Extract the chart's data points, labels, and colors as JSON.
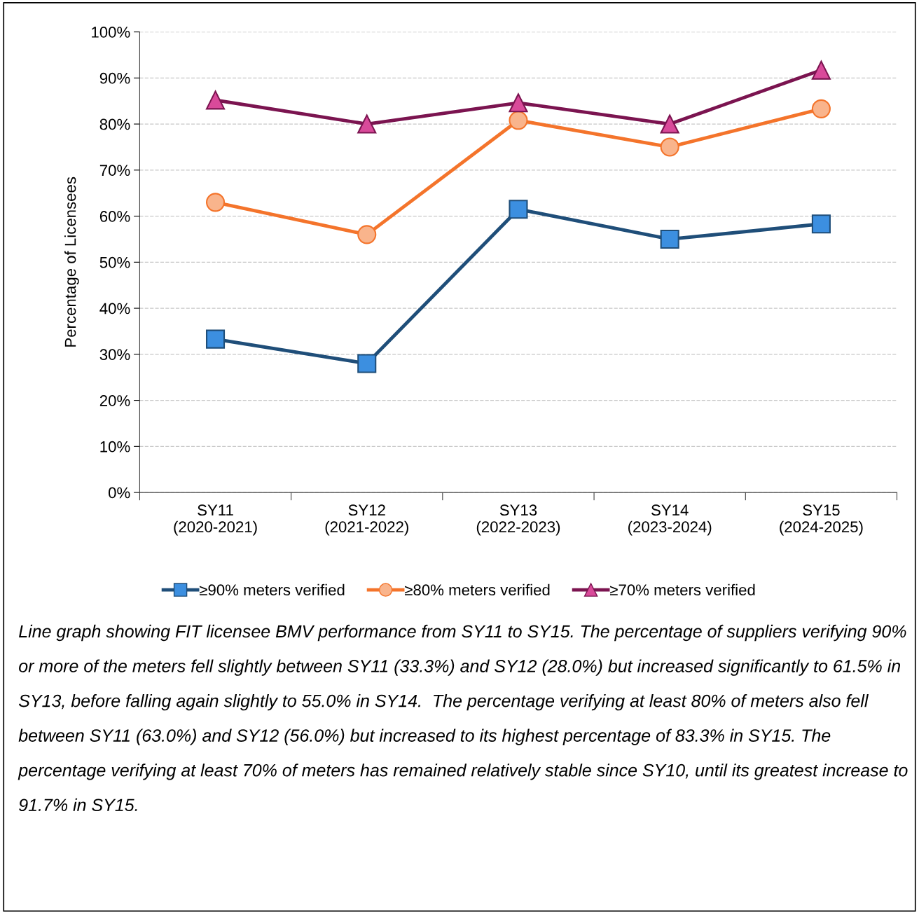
{
  "chart_data": {
    "type": "line",
    "ylabel": "Percentage of Licensees",
    "categories": [
      "SY11\n(2020-2021)",
      "SY12\n(2021-2022)",
      "SY13\n(2022-2023)",
      "SY14\n(2023-2024)",
      "SY15\n(2024-2025)"
    ],
    "series": [
      {
        "name": "≥90% meters verified",
        "color": "#1f4e79",
        "marker": "square",
        "values": [
          33.3,
          28.0,
          61.5,
          55.0,
          58.3
        ]
      },
      {
        "name": "≥80% meters verified",
        "color": "#f4742b",
        "marker": "circle",
        "values": [
          63.0,
          56.0,
          80.8,
          75.0,
          83.3
        ]
      },
      {
        "name": "≥70% meters verified",
        "color": "#7b1450",
        "marker": "triangle",
        "values": [
          85.2,
          80.0,
          84.6,
          80.0,
          91.7
        ]
      }
    ],
    "ylim": [
      0,
      100
    ],
    "yticks": [
      {
        "value": 0,
        "label": "0%"
      },
      {
        "value": 10,
        "label": "10%"
      },
      {
        "value": 20,
        "label": "20%"
      },
      {
        "value": 30,
        "label": "30%"
      },
      {
        "value": 40,
        "label": "40%"
      },
      {
        "value": 50,
        "label": "50%"
      },
      {
        "value": 60,
        "label": "60%"
      },
      {
        "value": 70,
        "label": "70%"
      },
      {
        "value": 80,
        "label": "80%"
      },
      {
        "value": 90,
        "label": "90%"
      },
      {
        "value": 100,
        "label": "100%"
      }
    ],
    "grid": "y",
    "legend": "bottom",
    "line_style": "solid",
    "annotations": [
      "Line graph showing FIT licensee BMV performance from SY11 to SY15. The percentage of suppliers verifying 90% or more of the meters fell slightly between SY11 (33.3%) and SY12 (28.0%) but increased significantly to 61.5% in SY13, before falling again slightly to 55.0% in SY14.  The percentage verifying at least 80% of meters also fell between SY11 (63.0%) and SY12 (56.0%) but increased to its highest percentage of 83.3% in SY15. The percentage verifying at least 70% of meters has remained relatively stable since SY10, until its greatest increase to 91.7% in SY15."
    ]
  }
}
